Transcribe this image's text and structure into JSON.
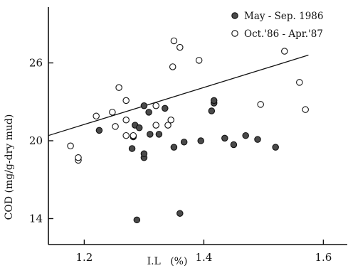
{
  "chart_data": {
    "type": "scatter",
    "title": "",
    "xlabel": "I.L   (%)",
    "ylabel": "COD (mg/g-dry mud)",
    "xlim": [
      1.14,
      1.64
    ],
    "ylim": [
      12,
      30.3
    ],
    "xticks": [
      1.2,
      1.4,
      1.6
    ],
    "xtick_labels": [
      "1.2",
      "1.4",
      "1.6"
    ],
    "yticks": [
      14,
      20,
      26
    ],
    "ytick_labels": [
      "14",
      "20",
      "26"
    ],
    "grid": false,
    "legend_position": "top-right",
    "series": [
      {
        "name": "May - Sep. 1986",
        "marker": "filled-circle",
        "color": "#4a4a4a",
        "points": [
          [
            1.225,
            20.8
          ],
          [
            1.28,
            19.4
          ],
          [
            1.282,
            20.3
          ],
          [
            1.285,
            21.2
          ],
          [
            1.288,
            13.9
          ],
          [
            1.292,
            21.0
          ],
          [
            1.3,
            18.7
          ],
          [
            1.3,
            19.0
          ],
          [
            1.3,
            22.7
          ],
          [
            1.308,
            22.2
          ],
          [
            1.31,
            20.5
          ],
          [
            1.325,
            20.5
          ],
          [
            1.335,
            22.5
          ],
          [
            1.35,
            19.5
          ],
          [
            1.36,
            14.4
          ],
          [
            1.367,
            19.9
          ],
          [
            1.395,
            20.0
          ],
          [
            1.413,
            22.3
          ],
          [
            1.417,
            22.9
          ],
          [
            1.417,
            23.1
          ],
          [
            1.435,
            20.2
          ],
          [
            1.45,
            19.7
          ],
          [
            1.47,
            20.4
          ],
          [
            1.49,
            20.1
          ],
          [
            1.52,
            19.5
          ]
        ]
      },
      {
        "name": "Oct.'86 - Apr.'87",
        "marker": "open-circle",
        "color": "#111111",
        "points": [
          [
            1.177,
            19.6
          ],
          [
            1.19,
            18.5
          ],
          [
            1.19,
            18.7
          ],
          [
            1.22,
            21.9
          ],
          [
            1.247,
            22.2
          ],
          [
            1.252,
            21.1
          ],
          [
            1.258,
            24.1
          ],
          [
            1.27,
            21.6
          ],
          [
            1.27,
            23.1
          ],
          [
            1.27,
            20.4
          ],
          [
            1.282,
            20.4
          ],
          [
            1.32,
            22.7
          ],
          [
            1.32,
            21.2
          ],
          [
            1.34,
            21.2
          ],
          [
            1.345,
            21.6
          ],
          [
            1.348,
            25.7
          ],
          [
            1.35,
            27.7
          ],
          [
            1.36,
            27.2
          ],
          [
            1.392,
            26.2
          ],
          [
            1.495,
            22.8
          ],
          [
            1.535,
            26.9
          ],
          [
            1.56,
            24.5
          ],
          [
            1.57,
            22.4
          ]
        ]
      }
    ],
    "trend_line": {
      "x": [
        1.14,
        1.575
      ],
      "y": [
        20.4,
        26.6
      ]
    }
  }
}
